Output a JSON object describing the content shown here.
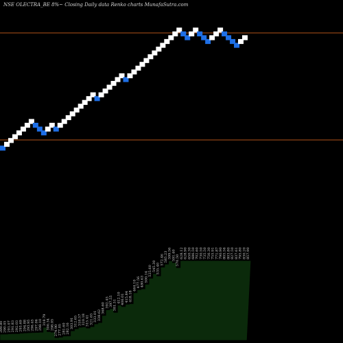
{
  "header": {
    "caption": "NSE OLECTRA_BE 8%~   Closing Daily data  Renko  charts MunafaSutra.com"
  },
  "colors": {
    "background": "#000000",
    "up_brick": "#ffffff",
    "down_brick": "#1e6fe6",
    "reference_line": "#b3541a",
    "area_fill": "#0b2a0b",
    "area_edge": "#000000"
  },
  "chart_data": {
    "type": "renko",
    "title": "",
    "series": [
      {
        "bricks": [
          {
            "dir": "down"
          },
          {
            "dir": "up"
          },
          {
            "dir": "up"
          },
          {
            "dir": "up"
          },
          {
            "dir": "up"
          },
          {
            "dir": "up"
          },
          {
            "dir": "up"
          },
          {
            "dir": "up"
          },
          {
            "dir": "down"
          },
          {
            "dir": "down"
          },
          {
            "dir": "down"
          },
          {
            "dir": "up"
          },
          {
            "dir": "up"
          },
          {
            "dir": "down"
          },
          {
            "dir": "up"
          },
          {
            "dir": "up"
          },
          {
            "dir": "up"
          },
          {
            "dir": "up"
          },
          {
            "dir": "up"
          },
          {
            "dir": "up"
          },
          {
            "dir": "up"
          },
          {
            "dir": "up"
          },
          {
            "dir": "up"
          },
          {
            "dir": "down"
          },
          {
            "dir": "up"
          },
          {
            "dir": "up"
          },
          {
            "dir": "up"
          },
          {
            "dir": "up"
          },
          {
            "dir": "up"
          },
          {
            "dir": "up"
          },
          {
            "dir": "down"
          },
          {
            "dir": "up"
          },
          {
            "dir": "up"
          },
          {
            "dir": "up"
          },
          {
            "dir": "up"
          },
          {
            "dir": "up"
          },
          {
            "dir": "up"
          },
          {
            "dir": "up"
          },
          {
            "dir": "up"
          },
          {
            "dir": "up"
          },
          {
            "dir": "up"
          },
          {
            "dir": "up"
          },
          {
            "dir": "up"
          },
          {
            "dir": "up"
          },
          {
            "dir": "down"
          },
          {
            "dir": "down"
          },
          {
            "dir": "up"
          },
          {
            "dir": "up"
          },
          {
            "dir": "down"
          },
          {
            "dir": "down"
          },
          {
            "dir": "down"
          },
          {
            "dir": "up"
          },
          {
            "dir": "up"
          },
          {
            "dir": "up"
          },
          {
            "dir": "down"
          },
          {
            "dir": "down"
          },
          {
            "dir": "down"
          },
          {
            "dir": "down"
          },
          {
            "dir": "up"
          },
          {
            "dir": "up"
          }
        ]
      }
    ],
    "reference_lines": [
      {
        "name": "upper",
        "level": 12
      },
      {
        "name": "lower",
        "level": 0
      }
    ],
    "brick_labels": [
      "289.80",
      "290.05",
      "291.07",
      "291.83",
      "292.03",
      "293.69",
      "294.88",
      "295.95",
      "296.45",
      "297.06",
      "298.10",
      "318.79",
      "300.34",
      "298.05",
      "274.90",
      "277.05",
      "281.60",
      "282.16",
      "303.91",
      "312.65",
      "318.57",
      "320.18",
      "315.41",
      "321.65",
      "333.01",
      "338.62",
      "368.60",
      "392.45",
      "397.55",
      "381.51",
      "412.10",
      "406.01",
      "415.84",
      "418.18",
      "464.10",
      "477.56",
      "480.63",
      "500.14",
      "525.60",
      "545.30",
      "535.40",
      "572.46",
      "585.23",
      "599.56",
      "591.40",
      "570.50",
      "628.12",
      "628.90",
      "650.30",
      "686.50",
      "702.60",
      "730.50",
      "735.50",
      "756.30",
      "755.91",
      "771.87",
      "790.90",
      "805.56",
      "803.80",
      "827.50",
      "837.61",
      "795.80",
      "830.20",
      "857.90"
    ],
    "grid": false,
    "legend": "none"
  }
}
